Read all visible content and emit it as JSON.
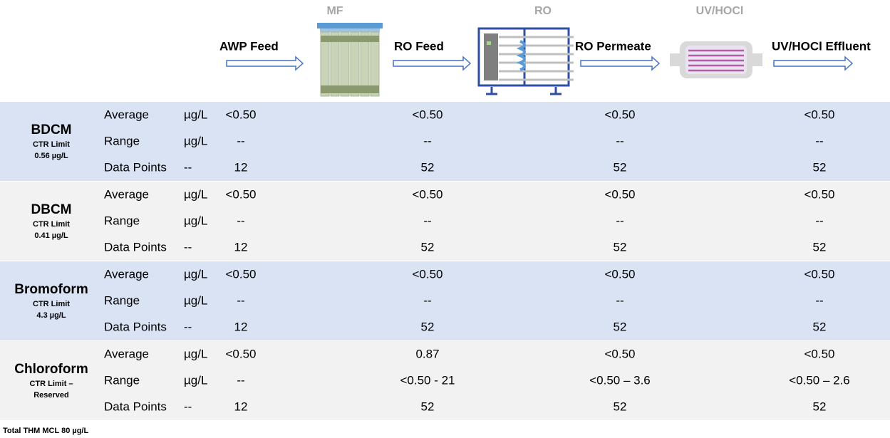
{
  "stages": [
    "MF",
    "RO",
    "UV/HOCl"
  ],
  "streams": [
    "AWP Feed",
    "RO Feed",
    "RO Permeate",
    "UV/HOCl Effluent"
  ],
  "groups": [
    {
      "name": "BDCM",
      "limit": [
        "CTR Limit",
        "0.56 µg/L"
      ],
      "rows": [
        [
          "Average",
          "µg/L",
          "<0.50",
          "<0.50",
          "<0.50",
          "<0.50"
        ],
        [
          "Range",
          "µg/L",
          "--",
          "--",
          "--",
          "--"
        ],
        [
          "Data Points",
          "--",
          "12",
          "52",
          "52",
          "52"
        ]
      ]
    },
    {
      "name": "DBCM",
      "limit": [
        "CTR Limit",
        "0.41 µg/L"
      ],
      "rows": [
        [
          "Average",
          "µg/L",
          "<0.50",
          "<0.50",
          "<0.50",
          "<0.50"
        ],
        [
          "Range",
          "µg/L",
          "--",
          "--",
          "--",
          "--"
        ],
        [
          "Data Points",
          "--",
          "12",
          "52",
          "52",
          "52"
        ]
      ]
    },
    {
      "name": "Bromoform",
      "limit": [
        "CTR Limit",
        "4.3 µg/L"
      ],
      "rows": [
        [
          "Average",
          "µg/L",
          "<0.50",
          "<0.50",
          "<0.50",
          "<0.50"
        ],
        [
          "Range",
          "µg/L",
          "--",
          "--",
          "--",
          "--"
        ],
        [
          "Data Points",
          "--",
          "12",
          "52",
          "52",
          "52"
        ]
      ]
    },
    {
      "name": "Chloroform",
      "limit": [
        "CTR Limit –",
        "Reserved"
      ],
      "rows": [
        [
          "Average",
          "µg/L",
          "<0.50",
          "0.87",
          "<0.50",
          "<0.50"
        ],
        [
          "Range",
          "µg/L",
          "--",
          "<0.50 - 21",
          "<0.50 – 3.6",
          "<0.50 – 2.6"
        ],
        [
          "Data Points",
          "--",
          "12",
          "52",
          "52",
          "52"
        ]
      ]
    }
  ],
  "footnote": "Total THM MCL 80 µg/L"
}
